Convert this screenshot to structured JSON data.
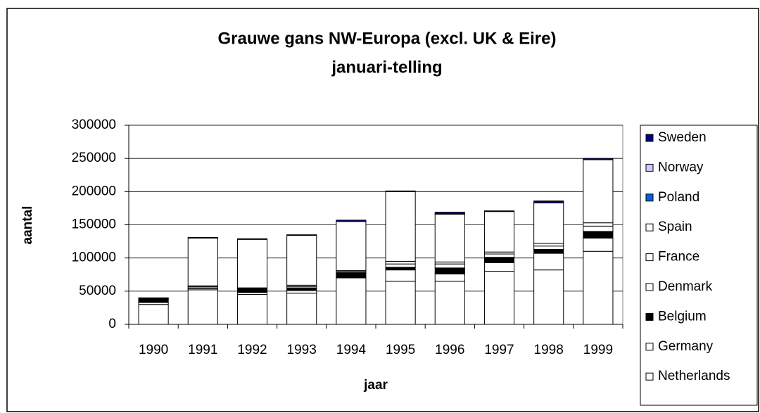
{
  "chart_data": {
    "type": "stacked_bar",
    "title": "Grauwe gans NW-Europa (excl. UK & Eire)",
    "subtitle": "januari-telling",
    "x_label": "jaar",
    "y_label": "aantal",
    "categories": [
      "1990",
      "1991",
      "1992",
      "1993",
      "1994",
      "1995",
      "1996",
      "1997",
      "1998",
      "1999"
    ],
    "series": [
      {
        "name": "Netherlands",
        "color": "#ffffff",
        "values": [
          30000,
          52000,
          45000,
          47000,
          70000,
          65000,
          65000,
          80000,
          82000,
          110000
        ]
      },
      {
        "name": "Germany",
        "color": "#ffffff",
        "values": [
          3000,
          2000,
          3000,
          4000,
          1000,
          17000,
          11000,
          13000,
          25000,
          20000
        ]
      },
      {
        "name": "Belgium",
        "color": "#000000",
        "values": [
          5000,
          1000,
          5000,
          4000,
          7000,
          4000,
          9000,
          8000,
          6000,
          10000
        ]
      },
      {
        "name": "Denmark",
        "color": "#ffffff",
        "values": [
          1000,
          2000,
          1000,
          2000,
          2000,
          5000,
          6000,
          5000,
          5000,
          8000
        ]
      },
      {
        "name": "France",
        "color": "#ffffff",
        "values": [
          500,
          1000,
          1000,
          2000,
          1000,
          4000,
          3000,
          3000,
          4000,
          5000
        ]
      },
      {
        "name": "Spain",
        "color": "#ffffff",
        "values": [
          0,
          72000,
          73000,
          75000,
          74000,
          105000,
          72000,
          61000,
          61000,
          95000
        ]
      },
      {
        "name": "Poland",
        "color": "#0066cc",
        "values": [
          0,
          0,
          0,
          0,
          0,
          0,
          0,
          0,
          0,
          0
        ]
      },
      {
        "name": "Norway",
        "color": "#ccccff",
        "values": [
          0,
          0,
          0,
          0,
          0,
          0,
          0,
          0,
          0,
          0
        ]
      },
      {
        "name": "Sweden",
        "color": "#000080",
        "values": [
          500,
          1000,
          1000,
          1000,
          2000,
          1000,
          3000,
          1000,
          3000,
          2000
        ]
      }
    ],
    "ylim": [
      0,
      300000
    ],
    "yticks": [
      0,
      50000,
      100000,
      150000,
      200000,
      250000,
      300000
    ],
    "grid": true,
    "legend": "right"
  }
}
